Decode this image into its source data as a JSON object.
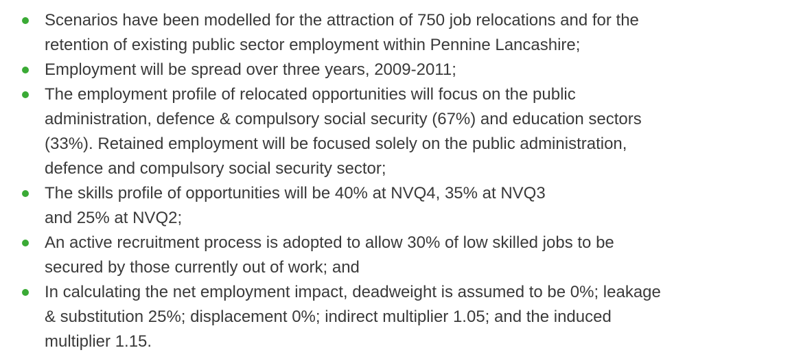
{
  "list": {
    "items": [
      {
        "lines": [
          "Scenarios have been modelled for the attraction of 750 job relocations and for the",
          "retention of existing public sector employment within Pennine Lancashire;"
        ]
      },
      {
        "lines": [
          "Employment will be spread over three years, 2009-2011;"
        ]
      },
      {
        "lines": [
          "The employment profile of relocated opportunities will focus on the public",
          "administration, defence & compulsory social security (67%) and education sectors",
          "(33%). Retained employment will be focused solely on the public administration,",
          "defence and compulsory social security sector;"
        ]
      },
      {
        "lines": [
          "The skills profile of opportunities will be 40% at NVQ4, 35% at NVQ3",
          "and 25% at NVQ2;"
        ]
      },
      {
        "lines": [
          "An active recruitment process is adopted to allow 30% of low skilled jobs to be",
          "secured by those currently out of work; and"
        ]
      },
      {
        "lines": [
          "In calculating the net employment impact, deadweight is assumed to be 0%; leakage",
          "& substitution 25%; displacement 0%; indirect multiplier 1.05; and the induced",
          "multiplier 1.15."
        ]
      }
    ]
  }
}
